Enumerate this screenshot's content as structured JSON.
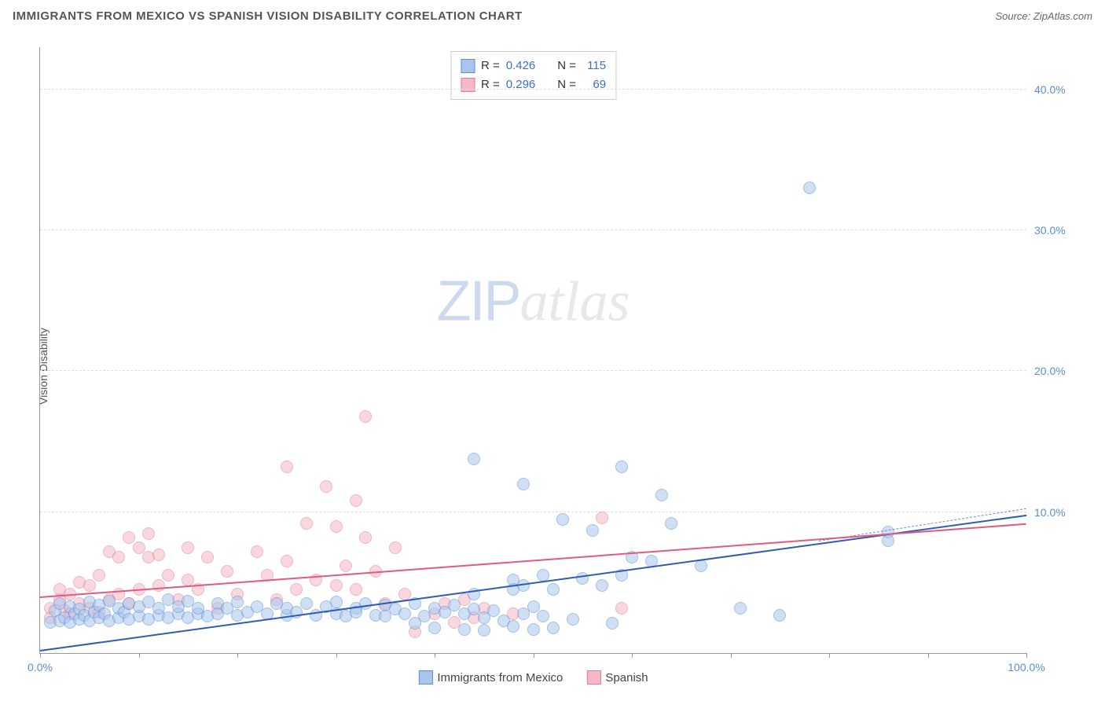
{
  "header": {
    "title": "IMMIGRANTS FROM MEXICO VS SPANISH VISION DISABILITY CORRELATION CHART",
    "source_prefix": "Source: ",
    "source_name": "ZipAtlas.com"
  },
  "watermark": {
    "part1": "ZIP",
    "part2": "atlas"
  },
  "chart": {
    "type": "scatter",
    "ylabel": "Vision Disability",
    "xlim": [
      0,
      100
    ],
    "ylim": [
      0,
      43
    ],
    "xtick_positions": [
      0,
      10,
      20,
      30,
      40,
      50,
      60,
      70,
      80,
      90,
      100
    ],
    "xtick_labels": {
      "0": "0.0%",
      "100": "100.0%"
    },
    "yticks": [
      10,
      20,
      30,
      40
    ],
    "ytick_labels": [
      "10.0%",
      "20.0%",
      "30.0%",
      "40.0%"
    ],
    "background_color": "#ffffff",
    "grid_color": "#dddddd",
    "axis_color": "#999999",
    "tick_label_color": "#5b8dd6",
    "marker_size": 16,
    "marker_opacity": 0.55,
    "series": [
      {
        "name": "Immigrants from Mexico",
        "R": "0.426",
        "N": "115",
        "fill": "#a9c5ec",
        "stroke": "#5b8dd6",
        "trend": {
          "x1": 0,
          "y1": 0.2,
          "x2": 100,
          "y2": 9.8,
          "color": "#2f5db3",
          "width": 2,
          "dash": false
        },
        "trend_ext": {
          "x1": 79,
          "y1": 8.0,
          "x2": 100,
          "y2": 10.3,
          "color": "#6b93d8",
          "width": 1,
          "dash": true
        },
        "points": [
          [
            1,
            2.2
          ],
          [
            1.5,
            3.0
          ],
          [
            2,
            2.3
          ],
          [
            2,
            3.5
          ],
          [
            2.5,
            2.5
          ],
          [
            3,
            2.2
          ],
          [
            3,
            3.3
          ],
          [
            3.5,
            2.8
          ],
          [
            4,
            2.4
          ],
          [
            4,
            3.1
          ],
          [
            4.5,
            2.7
          ],
          [
            5,
            2.3
          ],
          [
            5,
            3.6
          ],
          [
            5.5,
            2.9
          ],
          [
            6,
            2.5
          ],
          [
            6,
            3.4
          ],
          [
            6.5,
            2.8
          ],
          [
            7,
            2.3
          ],
          [
            7,
            3.7
          ],
          [
            8,
            2.5
          ],
          [
            8,
            3.2
          ],
          [
            8.5,
            2.9
          ],
          [
            9,
            2.4
          ],
          [
            9,
            3.5
          ],
          [
            10,
            2.6
          ],
          [
            10,
            3.3
          ],
          [
            11,
            2.4
          ],
          [
            11,
            3.6
          ],
          [
            12,
            2.7
          ],
          [
            12,
            3.2
          ],
          [
            13,
            2.5
          ],
          [
            13,
            3.8
          ],
          [
            14,
            2.8
          ],
          [
            14,
            3.3
          ],
          [
            15,
            2.5
          ],
          [
            15,
            3.7
          ],
          [
            16,
            2.8
          ],
          [
            16,
            3.2
          ],
          [
            17,
            2.6
          ],
          [
            18,
            3.5
          ],
          [
            18,
            2.8
          ],
          [
            19,
            3.2
          ],
          [
            20,
            2.7
          ],
          [
            20,
            3.6
          ],
          [
            21,
            2.9
          ],
          [
            22,
            3.3
          ],
          [
            23,
            2.8
          ],
          [
            24,
            3.5
          ],
          [
            25,
            2.7
          ],
          [
            25,
            3.2
          ],
          [
            26,
            2.9
          ],
          [
            27,
            3.5
          ],
          [
            28,
            2.7
          ],
          [
            29,
            3.3
          ],
          [
            30,
            2.8
          ],
          [
            30,
            3.6
          ],
          [
            31,
            2.6
          ],
          [
            32,
            3.2
          ],
          [
            32,
            2.9
          ],
          [
            33,
            3.5
          ],
          [
            34,
            2.7
          ],
          [
            35,
            3.4
          ],
          [
            35,
            2.6
          ],
          [
            36,
            3.1
          ],
          [
            37,
            2.8
          ],
          [
            38,
            2.1
          ],
          [
            38,
            3.5
          ],
          [
            39,
            2.6
          ],
          [
            40,
            3.2
          ],
          [
            40,
            1.8
          ],
          [
            41,
            2.9
          ],
          [
            42,
            3.4
          ],
          [
            43,
            1.7
          ],
          [
            43,
            2.8
          ],
          [
            44,
            3.1
          ],
          [
            44,
            13.8
          ],
          [
            45,
            2.5
          ],
          [
            45,
            1.6
          ],
          [
            46,
            3.0
          ],
          [
            47,
            2.3
          ],
          [
            48,
            1.9
          ],
          [
            48,
            5.2
          ],
          [
            49,
            2.8
          ],
          [
            49,
            12.0
          ],
          [
            50,
            3.3
          ],
          [
            50,
            1.7
          ],
          [
            51,
            2.6
          ],
          [
            51,
            5.5
          ],
          [
            52,
            1.8
          ],
          [
            53,
            9.5
          ],
          [
            54,
            2.4
          ],
          [
            55,
            5.3
          ],
          [
            56,
            8.7
          ],
          [
            57,
            4.8
          ],
          [
            58,
            2.1
          ],
          [
            59,
            13.2
          ],
          [
            59,
            5.5
          ],
          [
            60,
            6.8
          ],
          [
            62,
            6.5
          ],
          [
            63,
            11.2
          ],
          [
            64,
            9.2
          ],
          [
            67,
            6.2
          ],
          [
            71,
            3.2
          ],
          [
            75,
            2.7
          ],
          [
            78,
            33.0
          ],
          [
            86,
            8.6
          ],
          [
            86,
            8.0
          ],
          [
            48,
            4.5
          ],
          [
            44,
            4.2
          ],
          [
            49,
            4.8
          ],
          [
            52,
            4.5
          ]
        ]
      },
      {
        "name": "Spanish",
        "R": "0.296",
        "N": "69",
        "fill": "#f4b8c6",
        "stroke": "#e67a95",
        "trend": {
          "x1": 0,
          "y1": 4.0,
          "x2": 100,
          "y2": 9.2,
          "color": "#e15a7f",
          "width": 2.5,
          "dash": false
        },
        "points": [
          [
            1,
            3.2
          ],
          [
            1,
            2.5
          ],
          [
            2,
            3.8
          ],
          [
            2,
            4.5
          ],
          [
            2.5,
            3.0
          ],
          [
            3,
            4.2
          ],
          [
            3,
            2.8
          ],
          [
            4,
            3.5
          ],
          [
            4,
            5.0
          ],
          [
            5,
            3.2
          ],
          [
            5,
            4.8
          ],
          [
            6,
            2.9
          ],
          [
            6,
            5.5
          ],
          [
            7,
            3.8
          ],
          [
            7,
            7.2
          ],
          [
            8,
            4.2
          ],
          [
            8,
            6.8
          ],
          [
            9,
            3.5
          ],
          [
            9,
            8.2
          ],
          [
            10,
            4.5
          ],
          [
            10,
            7.5
          ],
          [
            11,
            6.8
          ],
          [
            11,
            8.5
          ],
          [
            12,
            4.8
          ],
          [
            12,
            7.0
          ],
          [
            13,
            5.5
          ],
          [
            14,
            3.8
          ],
          [
            15,
            7.5
          ],
          [
            15,
            5.2
          ],
          [
            16,
            4.5
          ],
          [
            17,
            6.8
          ],
          [
            18,
            3.2
          ],
          [
            19,
            5.8
          ],
          [
            20,
            4.2
          ],
          [
            22,
            7.2
          ],
          [
            23,
            5.5
          ],
          [
            24,
            3.8
          ],
          [
            25,
            13.2
          ],
          [
            25,
            6.5
          ],
          [
            26,
            4.5
          ],
          [
            27,
            9.2
          ],
          [
            28,
            5.2
          ],
          [
            29,
            11.8
          ],
          [
            30,
            4.8
          ],
          [
            30,
            9.0
          ],
          [
            31,
            6.2
          ],
          [
            32,
            10.8
          ],
          [
            32,
            4.5
          ],
          [
            33,
            8.2
          ],
          [
            33,
            16.8
          ],
          [
            34,
            5.8
          ],
          [
            35,
            3.5
          ],
          [
            36,
            7.5
          ],
          [
            37,
            4.2
          ],
          [
            38,
            1.5
          ],
          [
            40,
            2.8
          ],
          [
            41,
            3.5
          ],
          [
            42,
            2.2
          ],
          [
            43,
            3.8
          ],
          [
            44,
            2.5
          ],
          [
            45,
            3.2
          ],
          [
            48,
            2.8
          ],
          [
            57,
            9.6
          ],
          [
            59,
            3.2
          ]
        ]
      }
    ],
    "legend_top_labels": {
      "R": "R =",
      "N": "N ="
    },
    "legend_bottom": [
      {
        "label": "Immigrants from Mexico",
        "fill": "#a9c5ec",
        "stroke": "#5b8dd6"
      },
      {
        "label": "Spanish",
        "fill": "#f4b8c6",
        "stroke": "#e67a95"
      }
    ]
  }
}
